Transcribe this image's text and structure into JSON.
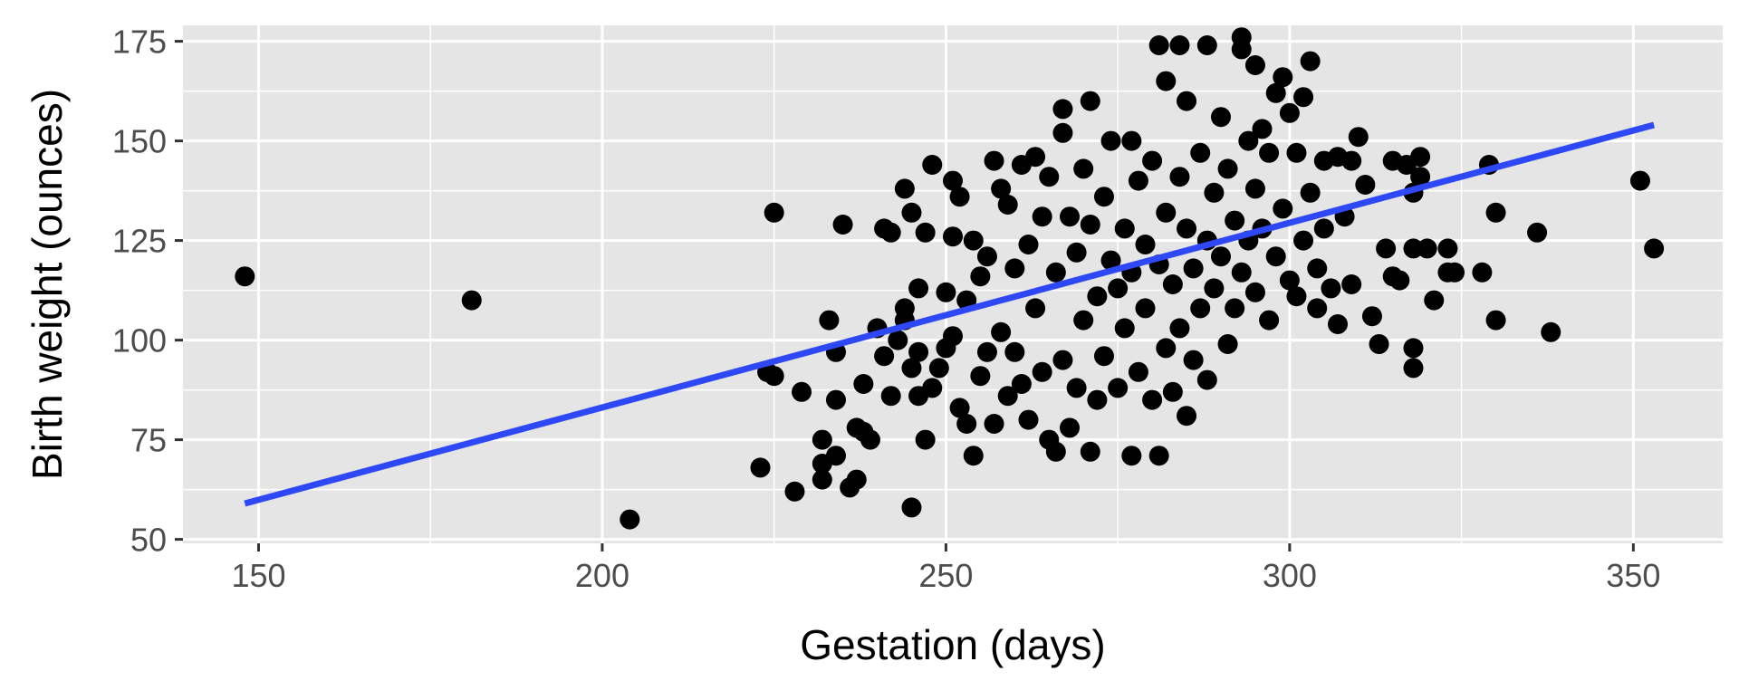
{
  "chart_data": {
    "type": "scatter",
    "xlabel": "Gestation (days)",
    "ylabel": "Birth weight (ounces)",
    "xlim": [
      139,
      363
    ],
    "ylim": [
      49,
      179
    ],
    "x_ticks": [
      150,
      200,
      250,
      300,
      350
    ],
    "y_ticks": [
      50,
      75,
      100,
      125,
      150,
      175
    ],
    "grid": true,
    "legend": "none",
    "colors": {
      "panel_background": "#e5e5e5",
      "grid": "#ffffff",
      "points": "#000000",
      "fit_line": "#2e48f5",
      "tick_labels": "#4d4d4d"
    },
    "fit_line": {
      "x": [
        148,
        353
      ],
      "y": [
        59,
        154
      ]
    },
    "points": [
      [
        148,
        116
      ],
      [
        181,
        110
      ],
      [
        204,
        55
      ],
      [
        223,
        68
      ],
      [
        224,
        92
      ],
      [
        225,
        132
      ],
      [
        225,
        91
      ],
      [
        228,
        62
      ],
      [
        229,
        87
      ],
      [
        232,
        75
      ],
      [
        232,
        69
      ],
      [
        232,
        65
      ],
      [
        233,
        105
      ],
      [
        234,
        71
      ],
      [
        234,
        97
      ],
      [
        234,
        85
      ],
      [
        235,
        129
      ],
      [
        236,
        63
      ],
      [
        237,
        78
      ],
      [
        237,
        65
      ],
      [
        238,
        89
      ],
      [
        238,
        77
      ],
      [
        239,
        75
      ],
      [
        240,
        103
      ],
      [
        241,
        128
      ],
      [
        241,
        96
      ],
      [
        242,
        127
      ],
      [
        242,
        86
      ],
      [
        243,
        100
      ],
      [
        244,
        138
      ],
      [
        244,
        108
      ],
      [
        244,
        105
      ],
      [
        245,
        132
      ],
      [
        245,
        93
      ],
      [
        245,
        58
      ],
      [
        246,
        113
      ],
      [
        246,
        97
      ],
      [
        246,
        86
      ],
      [
        247,
        127
      ],
      [
        247,
        75
      ],
      [
        248,
        144
      ],
      [
        248,
        88
      ],
      [
        249,
        93
      ],
      [
        250,
        112
      ],
      [
        250,
        98
      ],
      [
        251,
        140
      ],
      [
        251,
        126
      ],
      [
        251,
        101
      ],
      [
        252,
        136
      ],
      [
        252,
        83
      ],
      [
        253,
        110
      ],
      [
        253,
        79
      ],
      [
        254,
        125
      ],
      [
        254,
        71
      ],
      [
        255,
        116
      ],
      [
        255,
        91
      ],
      [
        256,
        121
      ],
      [
        256,
        97
      ],
      [
        257,
        145
      ],
      [
        257,
        79
      ],
      [
        258,
        138
      ],
      [
        258,
        102
      ],
      [
        259,
        134
      ],
      [
        259,
        86
      ],
      [
        260,
        118
      ],
      [
        260,
        97
      ],
      [
        261,
        144
      ],
      [
        261,
        89
      ],
      [
        262,
        124
      ],
      [
        262,
        80
      ],
      [
        263,
        146
      ],
      [
        263,
        108
      ],
      [
        264,
        131
      ],
      [
        264,
        92
      ],
      [
        265,
        141
      ],
      [
        265,
        75
      ],
      [
        266,
        117
      ],
      [
        266,
        72
      ],
      [
        267,
        158
      ],
      [
        267,
        152
      ],
      [
        267,
        95
      ],
      [
        268,
        131
      ],
      [
        268,
        78
      ],
      [
        269,
        122
      ],
      [
        269,
        88
      ],
      [
        270,
        143
      ],
      [
        270,
        105
      ],
      [
        271,
        160
      ],
      [
        271,
        72
      ],
      [
        271,
        129
      ],
      [
        272,
        111
      ],
      [
        272,
        85
      ],
      [
        273,
        136
      ],
      [
        273,
        96
      ],
      [
        274,
        120
      ],
      [
        274,
        150
      ],
      [
        275,
        113
      ],
      [
        275,
        88
      ],
      [
        276,
        128
      ],
      [
        276,
        103
      ],
      [
        277,
        150
      ],
      [
        277,
        71
      ],
      [
        277,
        117
      ],
      [
        278,
        140
      ],
      [
        278,
        92
      ],
      [
        279,
        124
      ],
      [
        279,
        108
      ],
      [
        280,
        145
      ],
      [
        280,
        85
      ],
      [
        281,
        119
      ],
      [
        281,
        174
      ],
      [
        281,
        71
      ],
      [
        282,
        132
      ],
      [
        282,
        98
      ],
      [
        282,
        165
      ],
      [
        283,
        114
      ],
      [
        283,
        87
      ],
      [
        284,
        174
      ],
      [
        284,
        141
      ],
      [
        284,
        103
      ],
      [
        285,
        128
      ],
      [
        285,
        81
      ],
      [
        285,
        160
      ],
      [
        286,
        118
      ],
      [
        286,
        95
      ],
      [
        287,
        147
      ],
      [
        287,
        108
      ],
      [
        288,
        174
      ],
      [
        288,
        125
      ],
      [
        288,
        90
      ],
      [
        289,
        137
      ],
      [
        289,
        113
      ],
      [
        290,
        156
      ],
      [
        290,
        121
      ],
      [
        291,
        143
      ],
      [
        291,
        99
      ],
      [
        292,
        130
      ],
      [
        292,
        108
      ],
      [
        293,
        176
      ],
      [
        293,
        173
      ],
      [
        293,
        117
      ],
      [
        294,
        150
      ],
      [
        294,
        125
      ],
      [
        295,
        169
      ],
      [
        295,
        138
      ],
      [
        295,
        112
      ],
      [
        296,
        153
      ],
      [
        296,
        128
      ],
      [
        297,
        105
      ],
      [
        297,
        147
      ],
      [
        298,
        162
      ],
      [
        298,
        121
      ],
      [
        299,
        166
      ],
      [
        299,
        133
      ],
      [
        300,
        157
      ],
      [
        300,
        115
      ],
      [
        301,
        147
      ],
      [
        301,
        111
      ],
      [
        302,
        161
      ],
      [
        302,
        125
      ],
      [
        303,
        170
      ],
      [
        303,
        137
      ],
      [
        304,
        118
      ],
      [
        304,
        108
      ],
      [
        305,
        145
      ],
      [
        305,
        128
      ],
      [
        306,
        113
      ],
      [
        307,
        146
      ],
      [
        307,
        104
      ],
      [
        308,
        131
      ],
      [
        309,
        145
      ],
      [
        309,
        114
      ],
      [
        310,
        151
      ],
      [
        311,
        139
      ],
      [
        312,
        106
      ],
      [
        313,
        99
      ],
      [
        314,
        123
      ],
      [
        315,
        145
      ],
      [
        315,
        116
      ],
      [
        316,
        115
      ],
      [
        317,
        144
      ],
      [
        318,
        137
      ],
      [
        318,
        98
      ],
      [
        318,
        93
      ],
      [
        318,
        123
      ],
      [
        319,
        146
      ],
      [
        319,
        141
      ],
      [
        320,
        123
      ],
      [
        321,
        110
      ],
      [
        323,
        123
      ],
      [
        323,
        117
      ],
      [
        324,
        117
      ],
      [
        328,
        117
      ],
      [
        329,
        144
      ],
      [
        330,
        132
      ],
      [
        330,
        105
      ],
      [
        336,
        127
      ],
      [
        338,
        102
      ],
      [
        351,
        140
      ],
      [
        353,
        123
      ]
    ]
  }
}
